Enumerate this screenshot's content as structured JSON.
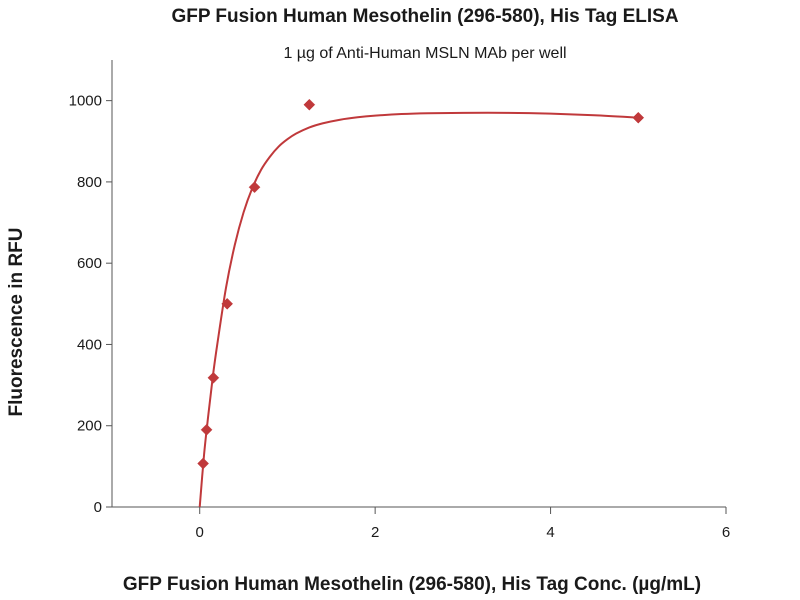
{
  "chart_data": {
    "type": "scatter",
    "title": "GFP Fusion Human Mesothelin (296-580), His Tag ELISA",
    "subtitle": "1 µg of Anti-Human MSLN MAb per well",
    "xlabel": "GFP Fusion Human Mesothelin (296-580), His Tag Conc. (µg/mL)",
    "ylabel": "Fluorescence in RFU",
    "xlim": [
      -1,
      6
    ],
    "ylim": [
      0,
      1100
    ],
    "x_ticks": [
      0,
      2,
      4,
      6
    ],
    "y_ticks": [
      0,
      200,
      400,
      600,
      800,
      1000
    ],
    "grid": false,
    "series": [
      {
        "x": [
          0.039,
          0.078,
          0.156,
          0.313,
          0.625,
          1.25,
          5.0
        ],
        "y": [
          107,
          190,
          318,
          500,
          787,
          990,
          958
        ],
        "fit_curve": {
          "x": [
            0.0,
            0.05,
            0.1,
            0.15,
            0.2,
            0.3,
            0.4,
            0.5,
            0.6,
            0.7,
            0.8,
            0.9,
            1.0,
            1.1,
            1.25,
            1.4,
            1.6,
            1.8,
            2.0,
            2.3,
            2.6,
            3.0,
            3.5,
            4.0,
            4.5,
            5.0
          ],
          "y": [
            0,
            130,
            230,
            322,
            400,
            540,
            645,
            725,
            785,
            830,
            862,
            887,
            905,
            919,
            934,
            944,
            953,
            959,
            963,
            967,
            969,
            970,
            970,
            968,
            964,
            958
          ]
        }
      }
    ],
    "colors": {
      "series": "#c0393b",
      "axis": "#555555"
    }
  }
}
